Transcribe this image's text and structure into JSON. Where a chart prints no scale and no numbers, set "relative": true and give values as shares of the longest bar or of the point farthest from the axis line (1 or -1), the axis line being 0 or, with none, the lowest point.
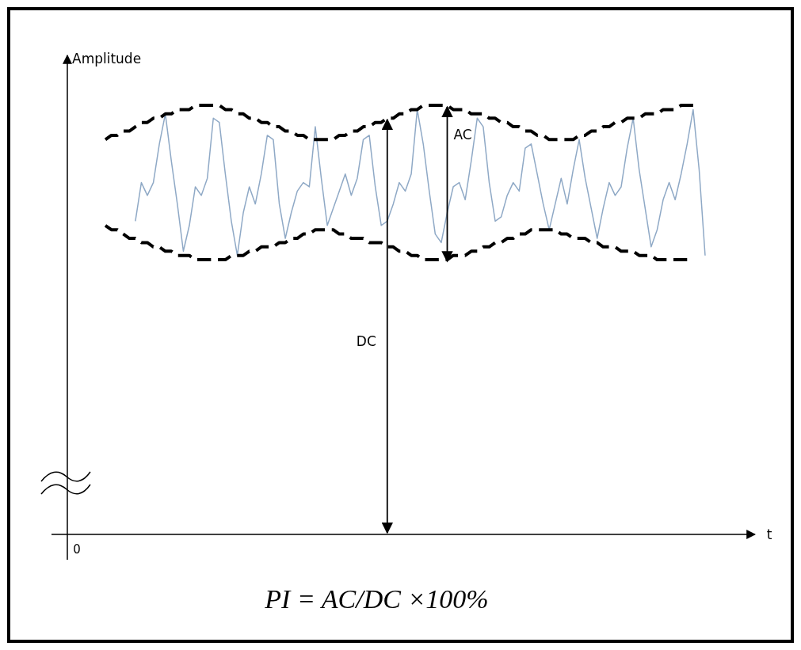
{
  "chart_data": {
    "type": "line",
    "relative": true,
    "ylabel": "Amplitude",
    "xlabel": "t",
    "categories": [
      null,
      null,
      null,
      null,
      null,
      null,
      null,
      null,
      null,
      null,
      null,
      null,
      null,
      null,
      null,
      null,
      null,
      null,
      null,
      null,
      null,
      null,
      null,
      null,
      null,
      null,
      null,
      null,
      null,
      null,
      null,
      null,
      null,
      null,
      null,
      null,
      null,
      null,
      null,
      null,
      null,
      null,
      null,
      null,
      null,
      null,
      null,
      null,
      null,
      null,
      null,
      null,
      null,
      null,
      null,
      null,
      null,
      null,
      null,
      null,
      null,
      null,
      null,
      null,
      null,
      null,
      null,
      null,
      null,
      null,
      null,
      null,
      null,
      null,
      null,
      null,
      null,
      null,
      null,
      null,
      null,
      null,
      null,
      null,
      null,
      null,
      null,
      null,
      null,
      null,
      null,
      null,
      null,
      null,
      null,
      null,
      null,
      null,
      null,
      null,
      null
    ],
    "series": [
      {
        "color": "#8fa9c6",
        "values": [
          null,
          null,
          null,
          null,
          null,
          0.73,
          0.82,
          0.79,
          0.82,
          0.91,
          0.98,
          0.87,
          0.77,
          0.66,
          0.72,
          0.81,
          0.79,
          0.83,
          0.97,
          0.96,
          0.84,
          0.73,
          0.65,
          0.75,
          0.81,
          0.77,
          0.84,
          0.93,
          0.92,
          0.77,
          0.69,
          0.75,
          0.8,
          0.82,
          0.81,
          0.95,
          0.83,
          0.72,
          0.76,
          0.8,
          0.84,
          0.79,
          0.83,
          0.92,
          0.93,
          0.81,
          0.72,
          0.73,
          0.77,
          0.82,
          0.8,
          0.84,
          0.99,
          0.91,
          0.8,
          0.7,
          0.68,
          0.75,
          0.81,
          0.82,
          0.78,
          0.87,
          0.97,
          0.95,
          0.82,
          0.73,
          0.74,
          0.79,
          0.82,
          0.8,
          0.9,
          0.91,
          0.84,
          0.77,
          0.71,
          0.77,
          0.83,
          0.77,
          0.85,
          0.92,
          0.83,
          0.76,
          0.69,
          0.76,
          0.82,
          0.79,
          0.81,
          0.9,
          0.97,
          0.85,
          0.76,
          0.67,
          0.71,
          0.78,
          0.82,
          0.78,
          0.84,
          0.91,
          0.99,
          0.85,
          0.65
        ]
      },
      {
        "color": "#000000",
        "line_style": "dashed",
        "values": [
          0.92,
          0.93,
          0.93,
          0.94,
          0.94,
          0.95,
          0.96,
          0.96,
          0.97,
          0.97,
          0.98,
          0.98,
          0.99,
          0.99,
          0.99,
          1.0,
          1.0,
          1.0,
          1.0,
          1.0,
          0.99,
          0.99,
          0.98,
          0.98,
          0.97,
          0.97,
          0.96,
          0.96,
          0.95,
          0.95,
          0.94,
          0.94,
          0.93,
          0.93,
          0.92,
          0.92,
          0.92,
          0.92,
          0.92,
          0.93,
          0.93,
          0.94,
          0.94,
          0.95,
          0.95,
          0.96,
          0.96,
          0.97,
          0.97,
          0.98,
          0.98,
          0.99,
          0.99,
          1.0,
          1.0,
          1.0,
          1.0,
          1.0,
          0.99,
          0.99,
          0.99,
          0.98,
          0.98,
          0.98,
          0.97,
          0.97,
          0.96,
          0.96,
          0.95,
          0.95,
          0.94,
          0.94,
          0.93,
          0.93,
          0.92,
          0.92,
          0.92,
          0.92,
          0.92,
          0.93,
          0.93,
          0.94,
          0.94,
          0.95,
          0.95,
          0.96,
          0.96,
          0.97,
          0.97,
          0.97,
          0.98,
          0.98,
          0.98,
          0.99,
          0.99,
          0.99,
          1.0,
          1.0,
          1.0,
          null,
          null
        ]
      },
      {
        "color": "#000000",
        "line_style": "dashed",
        "values": [
          0.72,
          0.71,
          0.71,
          0.7,
          0.69,
          0.69,
          0.68,
          0.68,
          0.67,
          0.67,
          0.66,
          0.66,
          0.65,
          0.65,
          0.65,
          0.64,
          0.64,
          0.64,
          0.64,
          0.64,
          0.64,
          0.65,
          0.65,
          0.65,
          0.66,
          0.66,
          0.67,
          0.67,
          0.67,
          0.68,
          0.68,
          0.69,
          0.69,
          0.7,
          0.7,
          0.71,
          0.71,
          0.71,
          0.71,
          0.7,
          0.7,
          0.69,
          0.69,
          0.69,
          0.68,
          0.68,
          0.68,
          0.67,
          0.67,
          0.66,
          0.66,
          0.65,
          0.65,
          0.64,
          0.64,
          0.64,
          0.64,
          0.64,
          0.65,
          0.65,
          0.65,
          0.66,
          0.66,
          0.67,
          0.67,
          0.68,
          0.68,
          0.69,
          0.69,
          0.7,
          0.7,
          0.71,
          0.71,
          0.71,
          0.71,
          0.71,
          0.7,
          0.7,
          0.69,
          0.69,
          0.69,
          0.68,
          0.68,
          0.67,
          0.67,
          0.67,
          0.66,
          0.66,
          0.66,
          0.65,
          0.65,
          0.65,
          0.64,
          0.64,
          0.64,
          0.64,
          0.64,
          0.64,
          null,
          null,
          null
        ]
      }
    ],
    "annotations": [
      "0",
      "AC",
      "DC",
      "PI = AC/DC ×100%"
    ]
  }
}
